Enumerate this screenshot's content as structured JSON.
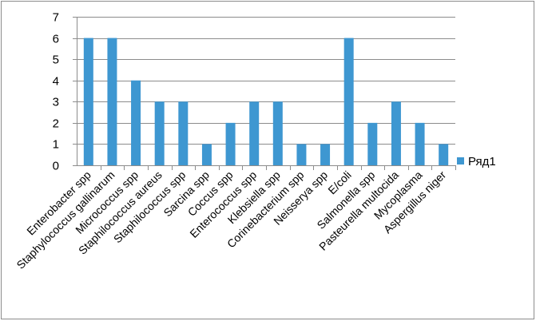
{
  "chart_data": {
    "type": "bar",
    "title": "",
    "xlabel": "",
    "ylabel": "",
    "ylim": [
      0,
      7
    ],
    "yticks": [
      0,
      1,
      2,
      3,
      4,
      5,
      6,
      7
    ],
    "grid": true,
    "legend_position": "right",
    "categories": [
      "Enterobacter spp",
      "Staphylococcus gallinarum",
      "Micrococcus spp",
      "Staphilococcus aureus",
      "Staphilococcus spp",
      "Sarcina spp",
      "Coccus spp",
      "Enterococcus spp",
      "Klebsiella spp",
      "Corinebacterium spp",
      "Neisserya spp",
      "E/coli",
      "Salmonella spp",
      "Pasteurella multocida",
      "Mycoplasma",
      "Aspergillus niger"
    ],
    "series": [
      {
        "name": "Ряд1",
        "color": "#3e97d1",
        "values": [
          6,
          6,
          4,
          3,
          3,
          1,
          2,
          3,
          3,
          1,
          1,
          6,
          2,
          3,
          2,
          1
        ]
      }
    ]
  }
}
